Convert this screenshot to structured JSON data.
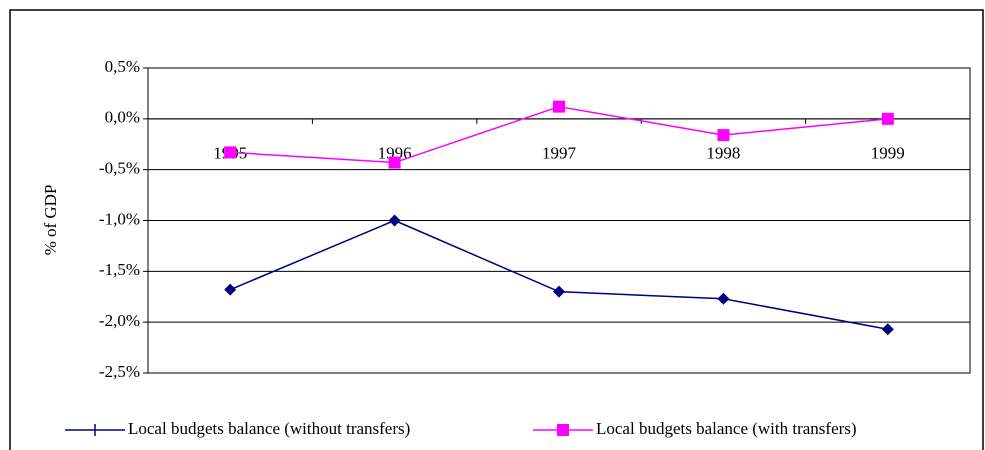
{
  "chart_data": {
    "type": "line",
    "y_label": "% of GDP",
    "categories": [
      "1995",
      "1996",
      "1997",
      "1998",
      "1999"
    ],
    "series": [
      {
        "name": "Local budgets balance (without transfers)",
        "color": "#000080",
        "values": [
          -1.68,
          -1.0,
          -1.7,
          -1.77,
          -2.07
        ]
      },
      {
        "name": "Local budgets balance (with transfers)",
        "color": "#ff00ff",
        "values": [
          -0.33,
          -0.43,
          0.12,
          -0.16,
          0.0
        ]
      }
    ],
    "ylim": [
      -2.5,
      0.5
    ],
    "yticks": [
      {
        "value": -2.5,
        "label": "-2,5%"
      },
      {
        "value": -2.0,
        "label": "-2,0%"
      },
      {
        "value": -1.5,
        "label": "-1,5%"
      },
      {
        "value": -1.0,
        "label": "-1,0%"
      },
      {
        "value": -0.5,
        "label": "-0,5%"
      },
      {
        "value": 0.0,
        "label": "0,0%"
      },
      {
        "value": 0.5,
        "label": "0,5%"
      }
    ],
    "grid": true
  }
}
